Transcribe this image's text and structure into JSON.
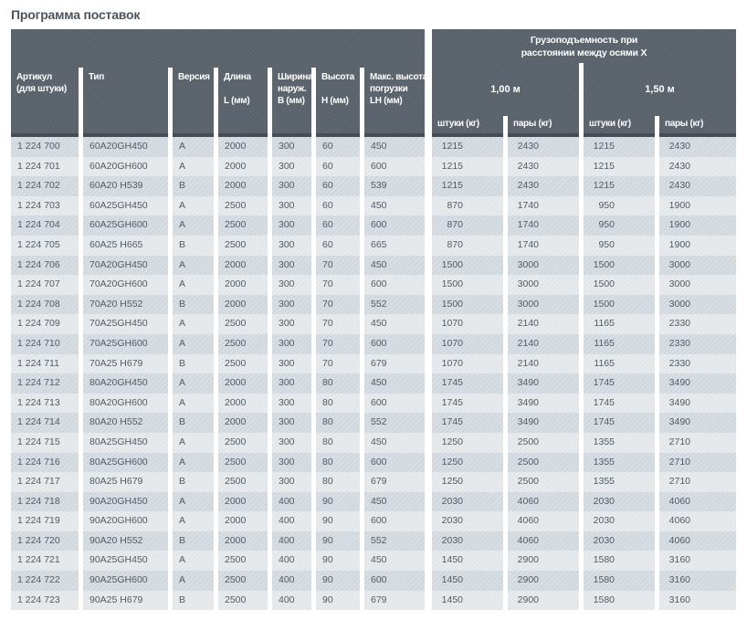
{
  "page": {
    "title": "Программа поставок"
  },
  "colors": {
    "header_bg": "#59616b",
    "header_strip": "#454c54",
    "row_odd": "#d1d9df",
    "row_even": "#e3e7ea",
    "data_text": "#525b63",
    "header_text": "#ffffff"
  },
  "table": {
    "left_columns": [
      {
        "id": "article",
        "label_lines": [
          "Артикул",
          "(для штуки)"
        ]
      },
      {
        "id": "type",
        "label_lines": [
          "Тип"
        ]
      },
      {
        "id": "version",
        "label_lines": [
          "Версия"
        ]
      },
      {
        "id": "length",
        "label_lines": [
          "Длина",
          "",
          "L (мм)"
        ]
      },
      {
        "id": "width",
        "label_lines": [
          "Ширина",
          "наруж.",
          "B (мм)"
        ]
      },
      {
        "id": "height",
        "label_lines": [
          "Высота",
          "",
          "H (мм)"
        ]
      },
      {
        "id": "load_height",
        "label_lines": [
          "Макс. высота",
          "погрузки",
          "LH (мм)"
        ]
      }
    ],
    "capacity_group": {
      "title_lines": [
        "Грузоподъемность при",
        "расстоянии между осями  X"
      ],
      "subgroups": [
        {
          "label": "1,00 м",
          "columns": [
            "штуки (кг)",
            "пары (кг)"
          ]
        },
        {
          "label": "1,50 м",
          "columns": [
            "штуки (кг)",
            "пары (кг)"
          ]
        }
      ]
    },
    "rows": [
      [
        "1 224 700",
        "60A20GH450",
        "A",
        "2000",
        "300",
        "60",
        "450",
        "1215",
        "2430",
        "1215",
        "2430"
      ],
      [
        "1 224 701",
        "60A20GH600",
        "A",
        "2000",
        "300",
        "60",
        "600",
        "1215",
        "2430",
        "1215",
        "2430"
      ],
      [
        "1 224 702",
        "60A20 H539",
        "B",
        "2000",
        "300",
        "60",
        "539",
        "1215",
        "2430",
        "1215",
        "2430"
      ],
      [
        "1 224 703",
        "60A25GH450",
        "A",
        "2500",
        "300",
        "60",
        "450",
        "870",
        "1740",
        "950",
        "1900"
      ],
      [
        "1 224 704",
        "60A25GH600",
        "A",
        "2500",
        "300",
        "60",
        "600",
        "870",
        "1740",
        "950",
        "1900"
      ],
      [
        "1 224 705",
        "60A25 H665",
        "B",
        "2500",
        "300",
        "60",
        "665",
        "870",
        "1740",
        "950",
        "1900"
      ],
      [
        "1 224 706",
        "70A20GH450",
        "A",
        "2000",
        "300",
        "70",
        "450",
        "1500",
        "3000",
        "1500",
        "3000"
      ],
      [
        "1 224 707",
        "70A20GH600",
        "A",
        "2000",
        "300",
        "70",
        "600",
        "1500",
        "3000",
        "1500",
        "3000"
      ],
      [
        "1 224 708",
        "70A20 H552",
        "B",
        "2000",
        "300",
        "70",
        "552",
        "1500",
        "3000",
        "1500",
        "3000"
      ],
      [
        "1 224 709",
        "70A25GH450",
        "A",
        "2500",
        "300",
        "70",
        "450",
        "1070",
        "2140",
        "1165",
        "2330"
      ],
      [
        "1 224 710",
        "70A25GH600",
        "A",
        "2500",
        "300",
        "70",
        "600",
        "1070",
        "2140",
        "1165",
        "2330"
      ],
      [
        "1 224 711",
        "70A25 H679",
        "B",
        "2500",
        "300",
        "70",
        "679",
        "1070",
        "2140",
        "1165",
        "2330"
      ],
      [
        "1 224 712",
        "80A20GH450",
        "A",
        "2000",
        "300",
        "80",
        "450",
        "1745",
        "3490",
        "1745",
        "3490"
      ],
      [
        "1 224 713",
        "80A20GH600",
        "A",
        "2000",
        "300",
        "80",
        "600",
        "1745",
        "3490",
        "1745",
        "3490"
      ],
      [
        "1 224 714",
        "80A20 H552",
        "B",
        "2000",
        "300",
        "80",
        "552",
        "1745",
        "3490",
        "1745",
        "3490"
      ],
      [
        "1 224 715",
        "80A25GH450",
        "A",
        "2500",
        "300",
        "80",
        "450",
        "1250",
        "2500",
        "1355",
        "2710"
      ],
      [
        "1 224 716",
        "80A25GH600",
        "A",
        "2500",
        "300",
        "80",
        "600",
        "1250",
        "2500",
        "1355",
        "2710"
      ],
      [
        "1 224 717",
        "80A25 H679",
        "B",
        "2500",
        "300",
        "80",
        "679",
        "1250",
        "2500",
        "1355",
        "2710"
      ],
      [
        "1 224 718",
        "90A20GH450",
        "A",
        "2000",
        "400",
        "90",
        "450",
        "2030",
        "4060",
        "2030",
        "4060"
      ],
      [
        "1 224 719",
        "90A20GH600",
        "A",
        "2000",
        "400",
        "90",
        "600",
        "2030",
        "4060",
        "2030",
        "4060"
      ],
      [
        "1 224 720",
        "90A20 H552",
        "B",
        "2000",
        "400",
        "90",
        "552",
        "2030",
        "4060",
        "2030",
        "4060"
      ],
      [
        "1 224 721",
        "90A25GH450",
        "A",
        "2500",
        "400",
        "90",
        "450",
        "1450",
        "2900",
        "1580",
        "3160"
      ],
      [
        "1 224 722",
        "90A25GH600",
        "A",
        "2500",
        "400",
        "90",
        "600",
        "1450",
        "2900",
        "1580",
        "3160"
      ],
      [
        "1 224 723",
        "90A25 H679",
        "B",
        "2500",
        "400",
        "90",
        "679",
        "1450",
        "2900",
        "1580",
        "3160"
      ]
    ]
  }
}
